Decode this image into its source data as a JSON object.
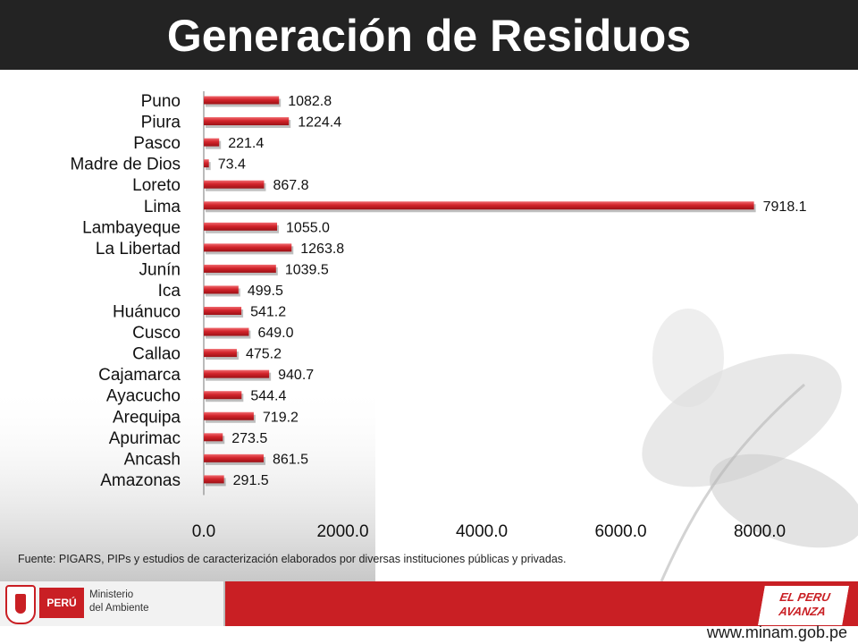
{
  "title": "Generación de Residuos",
  "source_note": "Fuente: PIGARS, PIPs y estudios de caracterización elaborados por diversas instituciones públicas y privadas.",
  "footer": {
    "country_tag": "PERÚ",
    "ministry_line1": "Ministerio",
    "ministry_line2": "del Ambiente",
    "slogan_line1": "EL PERU",
    "slogan_line2": "AVANZA",
    "website": "www.minam.gob.pe"
  },
  "colors": {
    "bar": "#d2242b",
    "title_bar": "#232323",
    "footer_band": "#c91f24"
  },
  "chart_data": {
    "type": "bar",
    "orientation": "horizontal",
    "categories": [
      "Puno",
      "Piura",
      "Pasco",
      "Madre de Dios",
      "Loreto",
      "Lima",
      "Lambayeque",
      "La Libertad",
      "Junín",
      "Ica",
      "Huánuco",
      "Cusco",
      "Callao",
      "Cajamarca",
      "Ayacucho",
      "Arequipa",
      "Apurimac",
      "Ancash",
      "Amazonas"
    ],
    "values": [
      1082.8,
      1224.4,
      221.4,
      73.4,
      867.8,
      7918.1,
      1055.0,
      1263.8,
      1039.5,
      499.5,
      541.2,
      649.0,
      475.2,
      940.7,
      544.4,
      719.2,
      273.5,
      861.5,
      291.5
    ],
    "value_labels": [
      "1082.8",
      "1224.4",
      "221.4",
      "73.4",
      "867.8",
      "7918.1",
      "1055.0",
      "1263.8",
      "1039.5",
      "499.5",
      "541.2",
      "649.0",
      "475.2",
      "940.7",
      "544.4",
      "719.2",
      "273.5",
      "861.5",
      "291.5"
    ],
    "xlim": [
      0,
      8000
    ],
    "xticks": [
      0,
      2000,
      4000,
      6000,
      8000
    ],
    "xtick_labels": [
      "0.0",
      "2000.0",
      "4000.0",
      "6000.0",
      "8000.0"
    ],
    "grid": false,
    "legend": "none"
  }
}
